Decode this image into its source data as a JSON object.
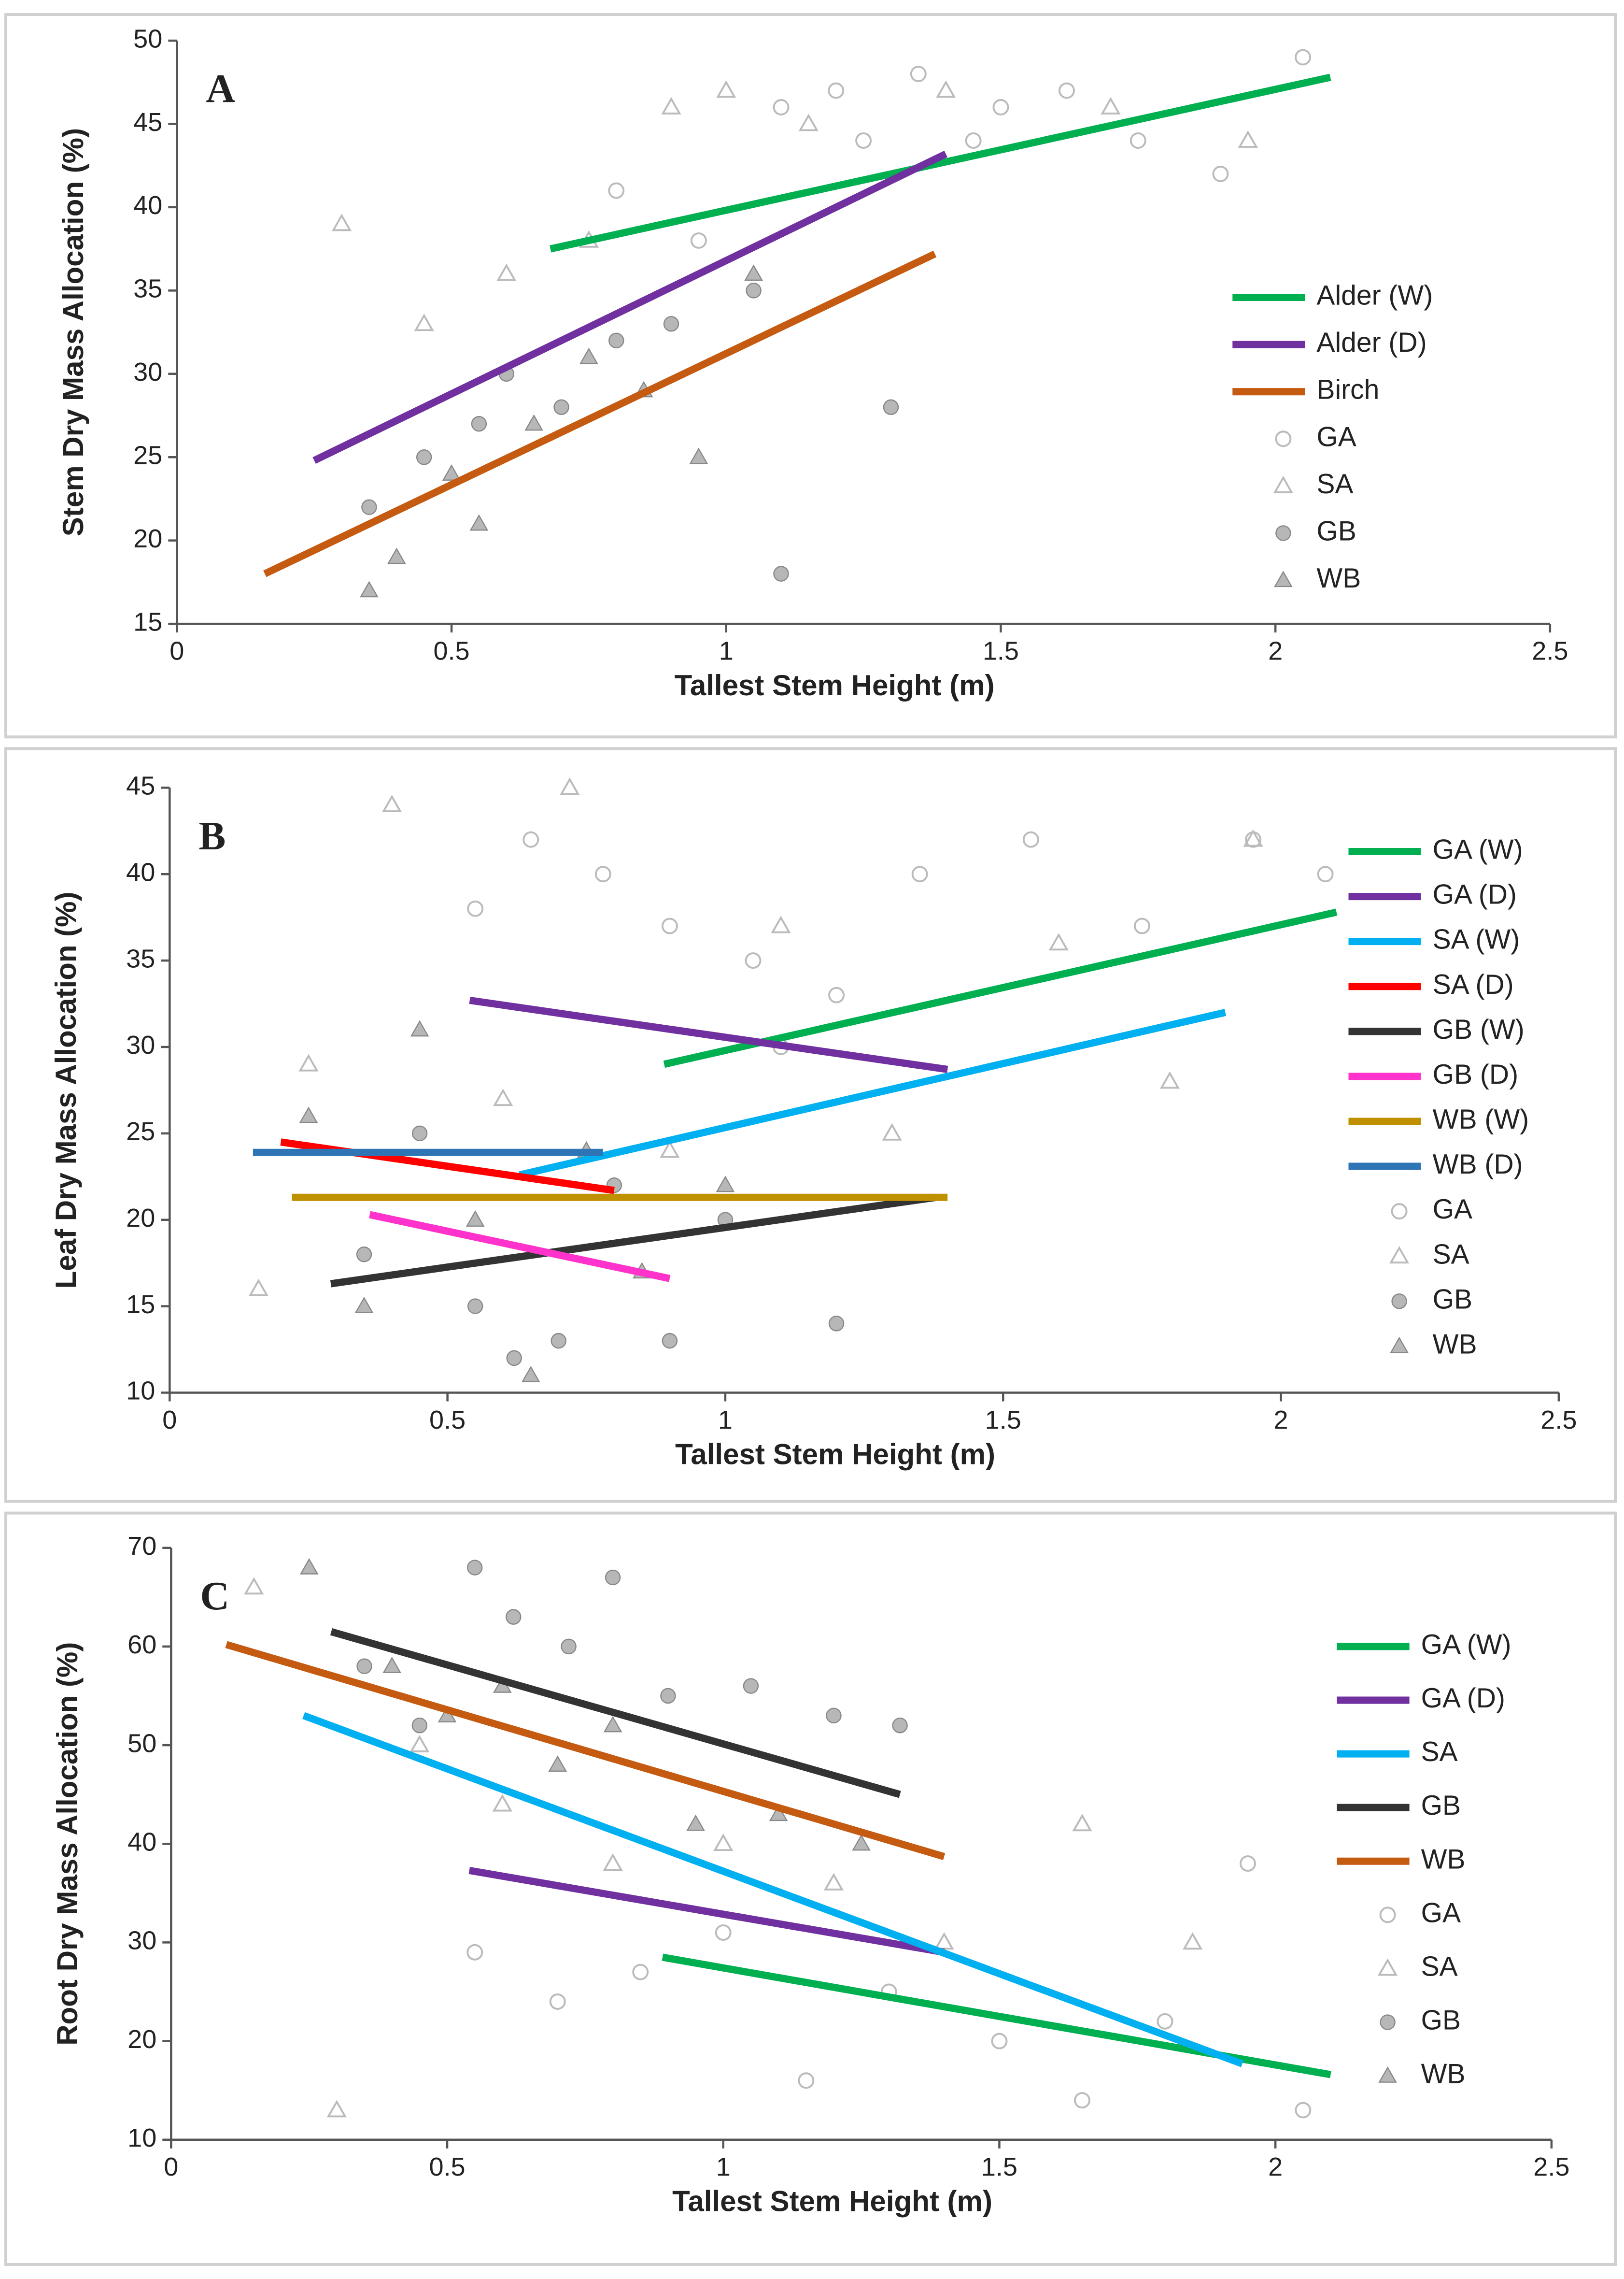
{
  "chart_data": [
    {
      "type": "scatter",
      "label": "A",
      "x_label": "Tallest Stem Height (m)",
      "y_label": "Stem Dry Mass Allocation (%)",
      "xlim": [
        0,
        2.5
      ],
      "xticks": [
        0,
        0.5,
        1,
        1.5,
        2,
        2.5
      ],
      "ylim": [
        15,
        50
      ],
      "yticks": [
        15,
        20,
        25,
        30,
        35,
        40,
        45,
        50
      ],
      "series": [
        {
          "name": "Alder (W)",
          "kind": "line",
          "color": "#00b050",
          "x": [
            0.68,
            2.1
          ],
          "values": [
            37.5,
            47.8
          ]
        },
        {
          "name": "Alder (D)",
          "kind": "line",
          "color": "#7030a0",
          "x": [
            0.25,
            1.4
          ],
          "values": [
            24.8,
            43.2
          ]
        },
        {
          "name": "Birch",
          "kind": "line",
          "color": "#c55a11",
          "x": [
            0.16,
            1.38
          ],
          "values": [
            18,
            37.2
          ]
        },
        {
          "name": "GA",
          "kind": "scatter",
          "marker": "circle-open",
          "color": "#bbbbbb",
          "x": [
            0.8,
            0.95,
            1.1,
            1.25,
            1.35,
            1.5,
            1.62,
            1.75,
            1.9,
            2.05,
            1.2,
            1.45
          ],
          "values": [
            41,
            38,
            46,
            44,
            48,
            46,
            47,
            44,
            42,
            49,
            47,
            44
          ]
        },
        {
          "name": "SA",
          "kind": "scatter",
          "marker": "triangle-open",
          "color": "#bbbbbb",
          "x": [
            0.3,
            0.45,
            0.6,
            0.75,
            0.9,
            1.0,
            1.15,
            1.4,
            1.7,
            1.95
          ],
          "values": [
            39,
            33,
            36,
            38,
            46,
            47,
            45,
            47,
            46,
            44
          ]
        },
        {
          "name": "GB",
          "kind": "scatter",
          "marker": "circle-filled",
          "color": "#999999",
          "x": [
            0.35,
            0.45,
            0.55,
            0.6,
            0.7,
            0.8,
            0.9,
            1.05,
            1.1,
            1.3
          ],
          "values": [
            22,
            25,
            27,
            30,
            28,
            32,
            33,
            35,
            18,
            28
          ]
        },
        {
          "name": "WB",
          "kind": "scatter",
          "marker": "triangle-filled",
          "color": "#999999",
          "x": [
            0.35,
            0.4,
            0.5,
            0.55,
            0.65,
            0.75,
            0.85,
            0.95,
            1.05
          ],
          "values": [
            17,
            19,
            24,
            21,
            27,
            31,
            29,
            25,
            36
          ]
        }
      ]
    },
    {
      "type": "scatter",
      "label": "B",
      "x_label": "Tallest Stem Height (m)",
      "y_label": "Leaf Dry Mass Allocation (%)",
      "xlim": [
        0,
        2.5
      ],
      "xticks": [
        0,
        0.5,
        1,
        1.5,
        2,
        2.5
      ],
      "ylim": [
        10,
        45
      ],
      "yticks": [
        10,
        15,
        20,
        25,
        30,
        35,
        40,
        45
      ],
      "series": [
        {
          "name": "GA (W)",
          "kind": "line",
          "color": "#00b050",
          "x": [
            0.89,
            2.1
          ],
          "values": [
            29,
            37.8
          ]
        },
        {
          "name": "GA (D)",
          "kind": "line",
          "color": "#7030a0",
          "x": [
            0.54,
            1.4
          ],
          "values": [
            32.7,
            28.7
          ]
        },
        {
          "name": "SA (W)",
          "kind": "line",
          "color": "#00b0f0",
          "x": [
            0.63,
            1.9
          ],
          "values": [
            22.6,
            32
          ]
        },
        {
          "name": "SA (D)",
          "kind": "line",
          "color": "#ff0000",
          "x": [
            0.2,
            0.8
          ],
          "values": [
            24.5,
            21.7
          ]
        },
        {
          "name": "GB (W)",
          "kind": "line",
          "color": "#333333",
          "x": [
            0.29,
            1.38
          ],
          "values": [
            16.3,
            21.3
          ]
        },
        {
          "name": "GB (D)",
          "kind": "line",
          "color": "#ff33cc",
          "x": [
            0.36,
            0.9
          ],
          "values": [
            20.3,
            16.6
          ]
        },
        {
          "name": "WB (W)",
          "kind": "line",
          "color": "#bf9000",
          "x": [
            0.22,
            1.4
          ],
          "values": [
            21.3,
            21.3
          ]
        },
        {
          "name": "WB (D)",
          "kind": "line",
          "color": "#2e75b6",
          "x": [
            0.15,
            0.78
          ],
          "values": [
            23.9,
            23.9
          ]
        },
        {
          "name": "GA",
          "kind": "scatter",
          "marker": "circle-open",
          "color": "#bbbbbb",
          "x": [
            0.55,
            0.65,
            0.78,
            0.9,
            1.05,
            1.2,
            1.35,
            1.55,
            1.75,
            1.95,
            2.08,
            1.1
          ],
          "values": [
            38,
            42,
            40,
            37,
            35,
            33,
            40,
            42,
            37,
            42,
            40,
            30
          ]
        },
        {
          "name": "SA",
          "kind": "scatter",
          "marker": "triangle-open",
          "color": "#bbbbbb",
          "x": [
            0.16,
            0.25,
            0.4,
            0.6,
            0.72,
            0.9,
            1.1,
            1.3,
            1.6,
            1.8,
            1.95
          ],
          "values": [
            16,
            29,
            44,
            27,
            45,
            24,
            37,
            25,
            36,
            28,
            42
          ]
        },
        {
          "name": "GB",
          "kind": "scatter",
          "marker": "circle-filled",
          "color": "#999999",
          "x": [
            0.35,
            0.45,
            0.55,
            0.62,
            0.7,
            0.8,
            0.9,
            1.0,
            1.2
          ],
          "values": [
            18,
            25,
            15,
            12,
            13,
            22,
            13,
            20,
            14
          ]
        },
        {
          "name": "WB",
          "kind": "scatter",
          "marker": "triangle-filled",
          "color": "#999999",
          "x": [
            0.25,
            0.35,
            0.45,
            0.55,
            0.65,
            0.75,
            0.85,
            1.0
          ],
          "values": [
            26,
            15,
            31,
            20,
            11,
            24,
            17,
            22
          ]
        }
      ]
    },
    {
      "type": "scatter",
      "label": "C",
      "x_label": "Tallest Stem Height (m)",
      "y_label": "Root Dry Mass Allocation (%)",
      "xlim": [
        0,
        2.5
      ],
      "xticks": [
        0,
        0.5,
        1,
        1.5,
        2,
        2.5
      ],
      "ylim": [
        10,
        70
      ],
      "yticks": [
        10,
        20,
        30,
        40,
        50,
        60,
        70
      ],
      "series": [
        {
          "name": "GA (W)",
          "kind": "line",
          "color": "#00b050",
          "x": [
            0.89,
            2.1
          ],
          "values": [
            28.5,
            16.6
          ]
        },
        {
          "name": "GA (D)",
          "kind": "line",
          "color": "#7030a0",
          "x": [
            0.54,
            1.4
          ],
          "values": [
            37.3,
            29
          ]
        },
        {
          "name": "SA",
          "kind": "line",
          "color": "#00b0f0",
          "x": [
            0.24,
            1.94
          ],
          "values": [
            53,
            17.7
          ]
        },
        {
          "name": "GB",
          "kind": "line",
          "color": "#333333",
          "x": [
            0.29,
            1.32
          ],
          "values": [
            61.5,
            45
          ]
        },
        {
          "name": "WB",
          "kind": "line",
          "color": "#c55a11",
          "x": [
            0.1,
            1.4
          ],
          "values": [
            60.2,
            38.7
          ]
        },
        {
          "name": "GA",
          "kind": "scatter",
          "marker": "circle-open",
          "color": "#bbbbbb",
          "x": [
            0.55,
            0.7,
            0.85,
            1.0,
            1.15,
            1.3,
            1.5,
            1.65,
            1.8,
            1.95,
            2.05
          ],
          "values": [
            29,
            24,
            27,
            31,
            16,
            25,
            20,
            14,
            22,
            38,
            13
          ]
        },
        {
          "name": "SA",
          "kind": "scatter",
          "marker": "triangle-open",
          "color": "#bbbbbb",
          "x": [
            0.15,
            0.3,
            0.45,
            0.6,
            0.8,
            1.0,
            1.2,
            1.4,
            1.65,
            1.85
          ],
          "values": [
            66,
            13,
            50,
            44,
            38,
            40,
            36,
            30,
            42,
            30
          ]
        },
        {
          "name": "GB",
          "kind": "scatter",
          "marker": "circle-filled",
          "color": "#999999",
          "x": [
            0.35,
            0.45,
            0.55,
            0.62,
            0.72,
            0.8,
            0.9,
            1.05,
            1.2,
            1.32
          ],
          "values": [
            58,
            52,
            68,
            63,
            60,
            67,
            55,
            56,
            53,
            52
          ]
        },
        {
          "name": "WB",
          "kind": "scatter",
          "marker": "triangle-filled",
          "color": "#999999",
          "x": [
            0.25,
            0.4,
            0.5,
            0.6,
            0.7,
            0.8,
            0.95,
            1.1,
            1.25
          ],
          "values": [
            68,
            58,
            53,
            56,
            48,
            52,
            42,
            43,
            40
          ]
        }
      ]
    }
  ]
}
